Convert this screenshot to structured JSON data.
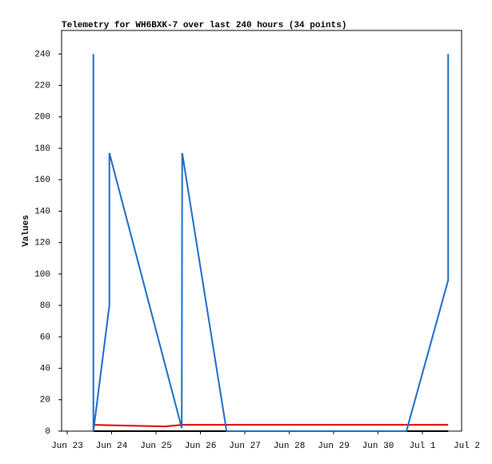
{
  "chart_data": {
    "type": "line",
    "title": "Telemetry for WH6BXK-7 over last 240 hours (34 points)",
    "y_label": "Values",
    "xlim": [
      -0.126,
      8.883
    ],
    "xticks": [
      {
        "value": 0,
        "label": "Jun 23"
      },
      {
        "value": 1,
        "label": "Jun 24"
      },
      {
        "value": 2,
        "label": "Jun 25"
      },
      {
        "value": 3,
        "label": "Jun 26"
      },
      {
        "value": 4,
        "label": "Jun 27"
      },
      {
        "value": 5,
        "label": "Jun 28"
      },
      {
        "value": 6,
        "label": "Jun 29"
      },
      {
        "value": 7,
        "label": "Jun 30"
      },
      {
        "value": 8,
        "label": "Jul 1"
      },
      {
        "value": 9,
        "label": "Jul 2"
      }
    ],
    "ylim": [
      0,
      255
    ],
    "yticks": [
      0,
      20,
      40,
      60,
      80,
      100,
      120,
      140,
      160,
      180,
      200,
      220,
      240
    ],
    "series": [
      {
        "color": "#000000",
        "x": [
          0.59,
          8.58
        ],
        "values": [
          0,
          0
        ]
      },
      {
        "color": "#e00000",
        "x": [
          0.59,
          1.37,
          2.2,
          2.59,
          8.58
        ],
        "values": [
          4,
          3.5,
          3,
          4,
          4
        ]
      },
      {
        "color": "#1a6bc4",
        "x": [
          0.59,
          0.59,
          0.95,
          0.95,
          2.58,
          2.59,
          3.59,
          7.64,
          8.58,
          8.58
        ],
        "values": [
          240,
          0,
          80,
          177,
          2,
          177,
          0,
          0,
          96,
          240
        ]
      }
    ]
  }
}
